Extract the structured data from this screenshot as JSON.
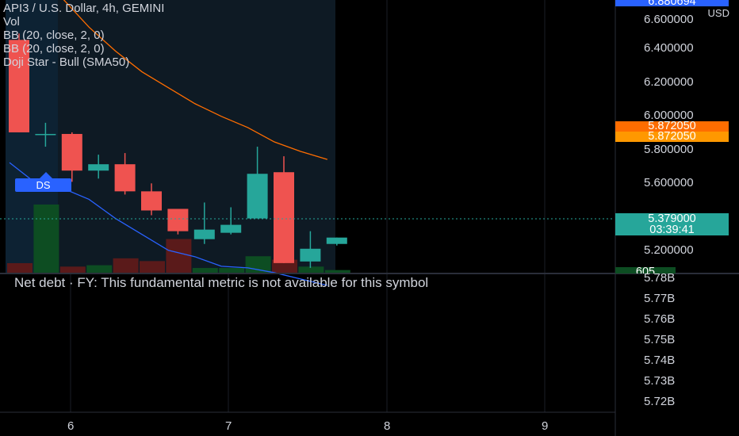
{
  "legend": {
    "title": "API3 / U.S. Dollar, 4h, GEMINI",
    "vol": "Vol",
    "bb1": "BB (20, close, 2, 0)",
    "bb2": "BB (20, close, 2, 0)",
    "doji": "Doji Star - Bull (SMA50)"
  },
  "badge": {
    "label": "DS"
  },
  "price_axis": {
    "top_tag": "6.880694",
    "currency": "USD",
    "labels": [
      "6.600000",
      "6.400000",
      "6.200000",
      "6.000000",
      "5.800000",
      "5.600000",
      "5.200000"
    ],
    "tag_orange_1": "5.872050",
    "tag_orange_2": "5.872050",
    "last_price": "5.379000",
    "countdown": "03:39:41",
    "vol_tag": "605"
  },
  "lower_pane": {
    "message": "Net debt · FY: This fundamental metric is not available for this symbol",
    "axis_labels": [
      "5.78B",
      "5.77B",
      "5.76B",
      "5.75B",
      "5.74B",
      "5.73B",
      "5.72B"
    ]
  },
  "time_axis": {
    "labels": [
      "6",
      "7",
      "8",
      "9"
    ]
  },
  "colors": {
    "up": "#26a69a",
    "down": "#ef5350",
    "bb_upper": "#ff6d00",
    "bb_lower": "#2962ff",
    "highlight": "#0e1a24",
    "vol_up": "#0d4d22",
    "vol_down": "#5a1a1a"
  },
  "chart_data": {
    "type": "candlestick",
    "series": [
      {
        "name": "API3 / U.S. Dollar",
        "ohlc": [
          [
            6.62,
            6.66,
            6.04,
            6.04
          ],
          [
            6.03,
            6.1,
            5.95,
            6.03
          ],
          [
            6.03,
            6.04,
            5.73,
            5.8
          ],
          [
            5.8,
            5.9,
            5.75,
            5.84
          ],
          [
            5.84,
            5.91,
            5.65,
            5.67
          ],
          [
            5.67,
            5.72,
            5.52,
            5.55
          ],
          [
            5.56,
            5.56,
            5.4,
            5.42
          ],
          [
            5.37,
            5.6,
            5.34,
            5.43
          ],
          [
            5.41,
            5.57,
            5.4,
            5.46
          ],
          [
            5.5,
            5.95,
            5.5,
            5.78
          ],
          [
            5.79,
            5.89,
            5.22,
            5.22
          ],
          [
            5.23,
            5.42,
            5.19,
            5.31
          ],
          [
            5.34,
            5.38,
            5.33,
            5.38
          ]
        ]
      }
    ],
    "volume_relative": [
      0.15,
      1.0,
      0.1,
      0.12,
      0.22,
      0.18,
      0.5,
      0.08,
      0.08,
      0.25,
      0.2,
      0.1,
      0.05
    ],
    "bb_upper": [
      7.0,
      6.95,
      6.88,
      6.7,
      6.55,
      6.42,
      6.32,
      6.22,
      6.14,
      6.07,
      5.98,
      5.92,
      5.87
    ],
    "bb_lower": [
      5.85,
      5.72,
      5.69,
      5.62,
      5.5,
      5.4,
      5.3,
      5.26,
      5.2,
      5.19,
      5.16,
      5.12,
      5.08
    ],
    "ylim": [
      5.1,
      6.9
    ]
  }
}
